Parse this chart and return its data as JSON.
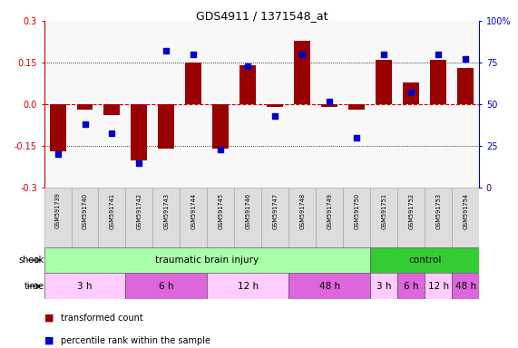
{
  "title": "GDS4911 / 1371548_at",
  "samples": [
    "GSM591739",
    "GSM591740",
    "GSM591741",
    "GSM591742",
    "GSM591743",
    "GSM591744",
    "GSM591745",
    "GSM591746",
    "GSM591747",
    "GSM591748",
    "GSM591749",
    "GSM591750",
    "GSM591751",
    "GSM591752",
    "GSM591753",
    "GSM591754"
  ],
  "bar_values": [
    -0.17,
    -0.02,
    -0.04,
    -0.2,
    -0.16,
    0.15,
    -0.16,
    0.14,
    -0.01,
    0.23,
    -0.01,
    -0.02,
    0.16,
    0.08,
    0.16,
    0.13
  ],
  "dot_values": [
    20,
    38,
    33,
    15,
    82,
    80,
    23,
    73,
    43,
    80,
    52,
    30,
    80,
    57,
    80,
    77
  ],
  "ylim_left": [
    -0.3,
    0.3
  ],
  "ylim_right": [
    0,
    100
  ],
  "yticks_left": [
    -0.3,
    -0.15,
    0.0,
    0.15,
    0.3
  ],
  "yticks_right": [
    0,
    25,
    50,
    75,
    100
  ],
  "bar_color": "#990000",
  "dot_color": "#0000cc",
  "shock_groups": [
    {
      "label": "traumatic brain injury",
      "start": 0,
      "end": 11,
      "color": "#aaffaa"
    },
    {
      "label": "control",
      "start": 12,
      "end": 15,
      "color": "#33cc33"
    }
  ],
  "time_groups": [
    {
      "label": "3 h",
      "start": 0,
      "end": 2,
      "color": "#ffccff"
    },
    {
      "label": "6 h",
      "start": 3,
      "end": 5,
      "color": "#dd66dd"
    },
    {
      "label": "12 h",
      "start": 6,
      "end": 8,
      "color": "#ffccff"
    },
    {
      "label": "48 h",
      "start": 9,
      "end": 11,
      "color": "#dd66dd"
    },
    {
      "label": "3 h",
      "start": 12,
      "end": 12,
      "color": "#ffccff"
    },
    {
      "label": "6 h",
      "start": 13,
      "end": 13,
      "color": "#dd66dd"
    },
    {
      "label": "12 h",
      "start": 14,
      "end": 14,
      "color": "#ffccff"
    },
    {
      "label": "48 h",
      "start": 15,
      "end": 15,
      "color": "#dd66dd"
    }
  ],
  "shock_label": "shock",
  "time_label": "time",
  "legend_bar": "transformed count",
  "legend_dot": "percentile rank within the sample",
  "zero_line_color": "#cc0000",
  "dotted_vals": [
    -0.15,
    0.15
  ]
}
